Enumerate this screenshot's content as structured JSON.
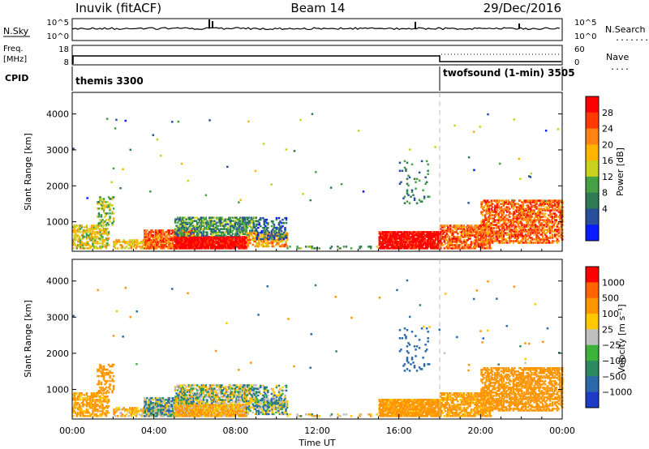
{
  "header": {
    "left_title": "Inuvik (fitACF)",
    "center_title": "Beam 14",
    "right_title": "29/Dec/2016"
  },
  "strips": {
    "nsky": {
      "label": "N.Sky",
      "ticks_left": [
        "10^5",
        "10^0"
      ],
      "ticks_right": [
        "10^5",
        "10^0"
      ],
      "right_label": "N.Search",
      "right_marker": "......."
    },
    "freq": {
      "label_top": "Freq.",
      "label_bottom": "[MHz]",
      "ticks_left": [
        "18",
        "8"
      ],
      "ticks_right": [
        "60",
        "0"
      ],
      "right_label": "Nave",
      "right_marker": "...."
    },
    "cpid": {
      "label": "CPID",
      "modes": [
        {
          "name": "themis 3300",
          "start_hour": 0,
          "end_hour": 18
        },
        {
          "name": "twofsound (1-min) 3505",
          "start_hour": 18,
          "end_hour": 24
        }
      ]
    }
  },
  "chart_data": [
    {
      "type": "heatmap",
      "panel": "power",
      "ylabel": "Slant Range [km]",
      "xlabel": "",
      "x_range_hours": [
        0,
        24
      ],
      "xticks": [
        "00:00",
        "04:00",
        "08:00",
        "12:00",
        "16:00",
        "20:00",
        "00:00"
      ],
      "yticks": [
        1000,
        2000,
        3000,
        4000
      ],
      "ylim": [
        180,
        4600
      ],
      "colorbar": {
        "label": "Power [dB]",
        "ticks": [
          "4",
          "8",
          "12",
          "16",
          "20",
          "24",
          "28"
        ],
        "colors": [
          "#0a1cff",
          "#2a4f9a",
          "#2e7a52",
          "#46a046",
          "#c8d21e",
          "#ffb400",
          "#ff8214",
          "#ff3a00",
          "#ff0000"
        ]
      }
    },
    {
      "type": "heatmap",
      "panel": "velocity",
      "ylabel": "Slant Range [km]",
      "xlabel": "Time UT",
      "x_range_hours": [
        0,
        24
      ],
      "xticks": [
        "00:00",
        "04:00",
        "08:00",
        "12:00",
        "16:00",
        "20:00",
        "00:00"
      ],
      "yticks": [
        1000,
        2000,
        3000,
        4000
      ],
      "ylim": [
        180,
        4600
      ],
      "colorbar": {
        "label": "Velocity [m s⁻¹]",
        "ticks": [
          "1000",
          "500",
          "100",
          "25",
          "−25",
          "−100",
          "−500",
          "−1000"
        ],
        "colors": [
          "#1e3cc8",
          "#2a6aaa",
          "#2e8a60",
          "#3cb43c",
          "#c0c0c0",
          "#ffc800",
          "#ff9600",
          "#ff6400",
          "#ff0000"
        ]
      }
    }
  ]
}
